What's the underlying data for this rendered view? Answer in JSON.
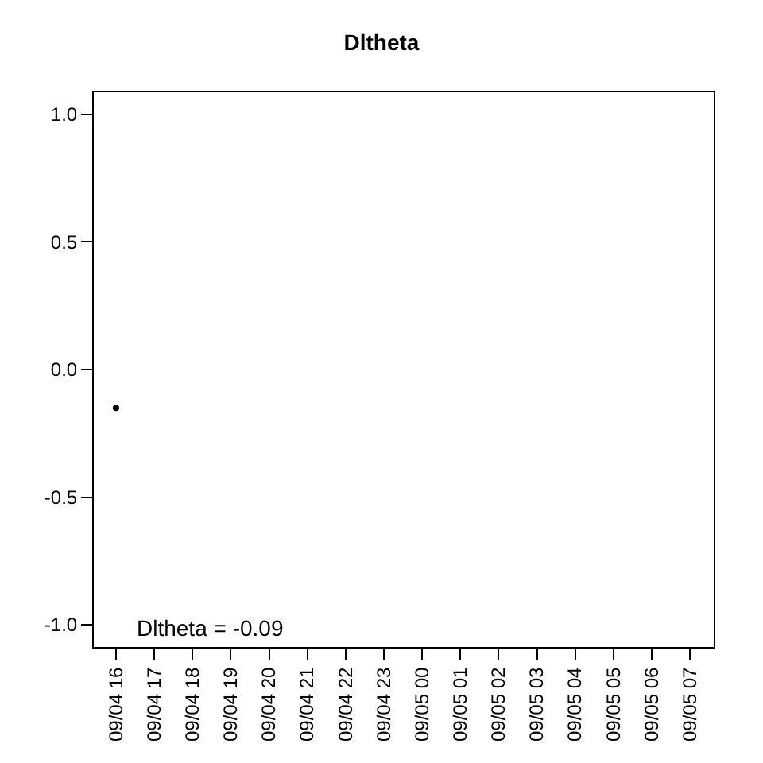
{
  "chart_data": {
    "type": "scatter",
    "title": "Dltheta",
    "categories": [
      "09/04 16",
      "09/04 17",
      "09/04 18",
      "09/04 19",
      "09/04 20",
      "09/04 21",
      "09/04 22",
      "09/04 23",
      "09/05 00",
      "09/05 01",
      "09/05 02",
      "09/05 03",
      "09/05 04",
      "09/05 05",
      "09/05 06",
      "09/05 07"
    ],
    "values": [
      -0.15,
      null,
      null,
      null,
      null,
      null,
      null,
      null,
      null,
      null,
      null,
      null,
      null,
      null,
      null,
      null
    ],
    "color": "#000000",
    "marker": "circle",
    "grid": false,
    "ylim": [
      -1.087,
      1.087
    ],
    "yticks": [
      {
        "value": -1,
        "label": "-1.0"
      },
      {
        "value": -0.5,
        "label": "-0.5"
      },
      {
        "value": 0,
        "label": "0.0"
      },
      {
        "value": 0.5,
        "label": "0.5"
      },
      {
        "value": 1,
        "label": "1.0"
      }
    ],
    "annotations": [
      "Dltheta = -0.09"
    ]
  }
}
